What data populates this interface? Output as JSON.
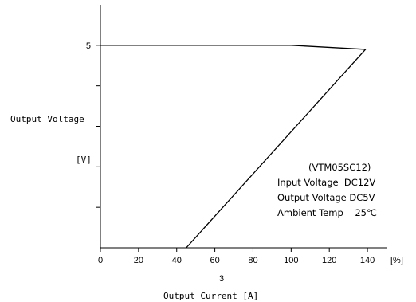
{
  "chart_data": {
    "type": "line",
    "title": "",
    "ylabel": "Output Voltage",
    "ylabel_unit": "[V]",
    "xlabel": "Output Current [A]",
    "x_unit": "[%]",
    "x_secondary_tick": {
      "value": 60,
      "label": "3"
    },
    "xlim": [
      0,
      150
    ],
    "ylim": [
      0,
      6
    ],
    "x_ticks": [
      0,
      20,
      40,
      60,
      80,
      100,
      120,
      140
    ],
    "y_ticks": [
      1,
      2,
      3,
      4,
      5
    ],
    "y_tick_labels": {
      "5": "5"
    },
    "grid": false,
    "series": [
      {
        "x": [
          0,
          100,
          139,
          45
        ],
        "y": [
          5,
          5,
          4.9,
          0
        ]
      }
    ],
    "annotations": [
      "(VTM05SC12)",
      "Input Voltage  DC12V",
      "Output Voltage DC5V",
      "Ambient Temp    25℃"
    ],
    "colors": {
      "line": "#000000"
    }
  }
}
